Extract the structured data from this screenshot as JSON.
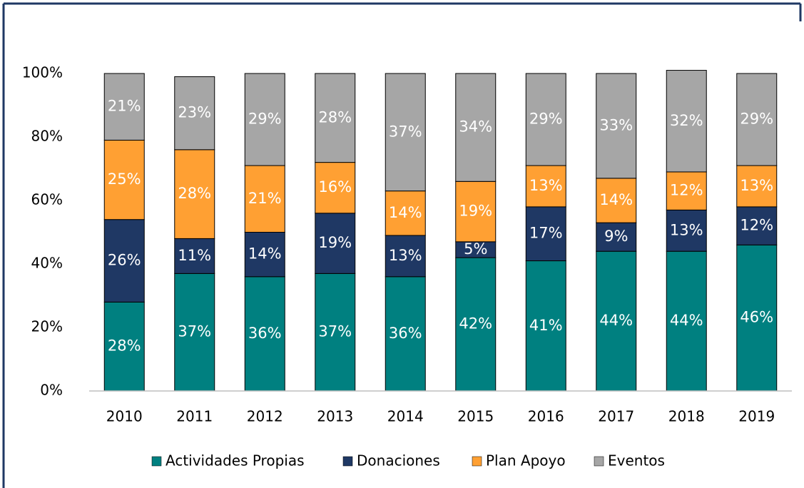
{
  "chart_data": {
    "type": "stacked_bar",
    "categories": [
      "2010",
      "2011",
      "2012",
      "2013",
      "2014",
      "2015",
      "2016",
      "2017",
      "2018",
      "2019"
    ],
    "series": [
      {
        "name": "Actividades Propias",
        "color": "#008080",
        "values": [
          28,
          37,
          36,
          37,
          36,
          42,
          41,
          44,
          44,
          46
        ],
        "value_labels": [
          "28%",
          "37%",
          "36%",
          "37%",
          "36%",
          "42%",
          "41%",
          "44%",
          "44%",
          "46%"
        ]
      },
      {
        "name": "Donaciones",
        "color": "#1f3864",
        "values": [
          26,
          11,
          14,
          19,
          13,
          5,
          17,
          9,
          13,
          12
        ],
        "value_labels": [
          "26%",
          "11%",
          "14%",
          "19%",
          "13%",
          "5%",
          "17%",
          "9%",
          "13%",
          "12%"
        ]
      },
      {
        "name": "Plan Apoyo",
        "color": "#ffa033",
        "values": [
          25,
          28,
          21,
          16,
          14,
          19,
          13,
          14,
          12,
          13
        ],
        "value_labels": [
          "25%",
          "28%",
          "21%",
          "16%",
          "14%",
          "19%",
          "13%",
          "14%",
          "12%",
          "13%"
        ]
      },
      {
        "name": "Eventos",
        "color": "#a6a6a6",
        "values": [
          21,
          23,
          29,
          28,
          37,
          34,
          29,
          33,
          32,
          29
        ],
        "value_labels": [
          "21%",
          "23%",
          "29%",
          "28%",
          "37%",
          "34%",
          "29%",
          "33%",
          "32%",
          "29%"
        ]
      }
    ],
    "ylim": [
      0,
      100
    ],
    "yticks": [
      {
        "value": 0,
        "label": "0%"
      },
      {
        "value": 20,
        "label": "20%"
      },
      {
        "value": 40,
        "label": "40%"
      },
      {
        "value": 60,
        "label": "60%"
      },
      {
        "value": 80,
        "label": "80%"
      },
      {
        "value": 100,
        "label": "100%"
      }
    ],
    "legend": "bottom"
  }
}
